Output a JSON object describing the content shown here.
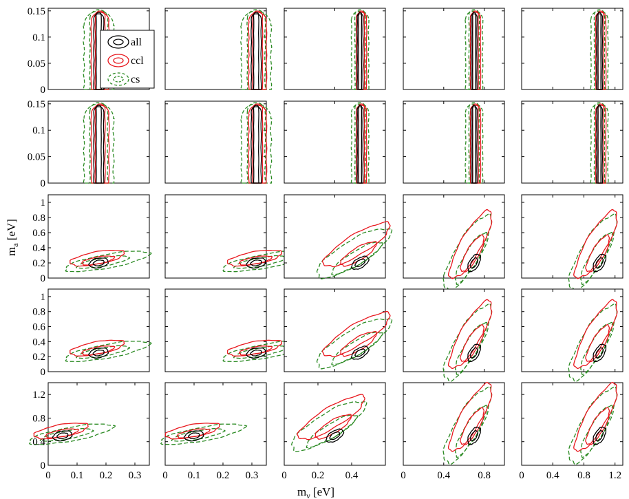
{
  "figure": {
    "xlabel_main": "m",
    "xlabel_sub": "ν",
    "xlabel_unit": " [eV]",
    "ylabel_main": "m",
    "ylabel_sub": "a",
    "ylabel_unit": " [eV]"
  },
  "legend": [
    {
      "label": "all",
      "color": "#000000",
      "dash": "solid"
    },
    {
      "label": "ccl",
      "color": "#e8181e",
      "dash": "solid"
    },
    {
      "label": "cs",
      "color": "#2a8a22",
      "dash": "dashed"
    }
  ],
  "chart_data": {
    "type": "contour",
    "grid": "5x5",
    "column_mnu_true": [
      0.05,
      0.1,
      0.3,
      0.7,
      1.0
    ],
    "column_xlim": [
      [
        0,
        0.1
      ],
      [
        0,
        0.1
      ],
      [
        0,
        0.4
      ],
      [
        0,
        1.0
      ],
      [
        0,
        1.3
      ]
    ],
    "column_xlim_bottom_row": [
      [
        0,
        0.35
      ],
      [
        0,
        0.35
      ],
      [
        0,
        0.6
      ],
      [
        0,
        1.0
      ],
      [
        0,
        1.3
      ]
    ],
    "row_ylim": [
      [
        0,
        0.155
      ],
      [
        0,
        0.155
      ],
      [
        0,
        1.1
      ],
      [
        0,
        1.1
      ],
      [
        0,
        1.4
      ]
    ],
    "row_yticks": [
      [
        "0",
        "0.05",
        "0.1",
        "0.15"
      ],
      [
        "0",
        "0.05",
        "0.1",
        "0.15"
      ],
      [
        "0",
        "0.2",
        "0.4",
        "0.6",
        "0.8",
        "1"
      ],
      [
        "0",
        "0.2",
        "0.4",
        "0.6",
        "0.8",
        "1"
      ],
      [
        "0",
        "0.4",
        "0.8",
        "1.2"
      ]
    ],
    "row_ytick_values": [
      [
        0,
        0.05,
        0.1,
        0.15
      ],
      [
        0,
        0.05,
        0.1,
        0.15
      ],
      [
        0,
        0.2,
        0.4,
        0.6,
        0.8,
        1.0
      ],
      [
        0,
        0.2,
        0.4,
        0.6,
        0.8,
        1.0
      ],
      [
        0,
        0.4,
        0.8,
        1.2
      ]
    ],
    "bottom_xticks": [
      [
        "0",
        "0.1",
        "0.2",
        "0.3"
      ],
      [
        "0",
        "0.1",
        "0.2",
        "0.3"
      ],
      [
        "0",
        "0.2",
        "0.4"
      ],
      [
        "0",
        "0.4",
        "0.8"
      ],
      [
        "0",
        "0.4",
        "0.8",
        "1.2"
      ]
    ],
    "bottom_xtick_values": [
      [
        0,
        0.1,
        0.2,
        0.3
      ],
      [
        0,
        0.1,
        0.2,
        0.3
      ],
      [
        0,
        0.2,
        0.4
      ],
      [
        0,
        0.4,
        0.8
      ],
      [
        0,
        0.4,
        0.8,
        1.2
      ]
    ],
    "row_ma_true": [
      0.0,
      0.0,
      0.2,
      0.25,
      0.5
    ],
    "series": [
      "all",
      "ccl",
      "cs"
    ]
  }
}
